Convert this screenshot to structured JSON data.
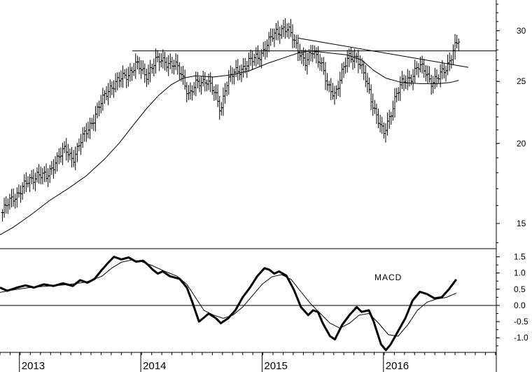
{
  "chart_data": [
    {
      "type": "bar",
      "subtype": "ohlc",
      "scale": "log",
      "ylim": [
        13.7,
        33.5
      ],
      "y_ticks": [
        15,
        20,
        25,
        30
      ],
      "y_tick_labels": [
        "15",
        "20",
        "25",
        "30"
      ],
      "x_tick_labels": [
        "2013",
        "2014",
        "2015",
        "2016"
      ],
      "x_range": [
        2012.84,
        2016.93
      ],
      "price_series": [
        {
          "t": 2012.86,
          "v": 15.6
        },
        {
          "t": 2012.95,
          "v": 16.5
        },
        {
          "t": 2013.05,
          "v": 17.2
        },
        {
          "t": 2013.15,
          "v": 18.0
        },
        {
          "t": 2013.22,
          "v": 17.6
        },
        {
          "t": 2013.3,
          "v": 18.9
        },
        {
          "t": 2013.38,
          "v": 19.5
        },
        {
          "t": 2013.44,
          "v": 19.0
        },
        {
          "t": 2013.52,
          "v": 20.3
        },
        {
          "t": 2013.58,
          "v": 21.4
        },
        {
          "t": 2013.66,
          "v": 22.8
        },
        {
          "t": 2013.74,
          "v": 24.5
        },
        {
          "t": 2013.82,
          "v": 25.0
        },
        {
          "t": 2013.9,
          "v": 25.8
        },
        {
          "t": 2013.96,
          "v": 26.5
        },
        {
          "t": 2014.04,
          "v": 25.6
        },
        {
          "t": 2014.12,
          "v": 26.8
        },
        {
          "t": 2014.2,
          "v": 27.0
        },
        {
          "t": 2014.28,
          "v": 26.4
        },
        {
          "t": 2014.34,
          "v": 25.6
        },
        {
          "t": 2014.4,
          "v": 23.8
        },
        {
          "t": 2014.46,
          "v": 24.7
        },
        {
          "t": 2014.54,
          "v": 25.3
        },
        {
          "t": 2014.6,
          "v": 24.0
        },
        {
          "t": 2014.66,
          "v": 22.6
        },
        {
          "t": 2014.7,
          "v": 24.8
        },
        {
          "t": 2014.78,
          "v": 25.8
        },
        {
          "t": 2014.86,
          "v": 26.5
        },
        {
          "t": 2014.92,
          "v": 26.9
        },
        {
          "t": 2015.0,
          "v": 27.8
        },
        {
          "t": 2015.06,
          "v": 28.8
        },
        {
          "t": 2015.12,
          "v": 30.0
        },
        {
          "t": 2015.18,
          "v": 30.3
        },
        {
          "t": 2015.24,
          "v": 29.5
        },
        {
          "t": 2015.3,
          "v": 28.2
        },
        {
          "t": 2015.36,
          "v": 26.5
        },
        {
          "t": 2015.42,
          "v": 28.0
        },
        {
          "t": 2015.48,
          "v": 27.0
        },
        {
          "t": 2015.54,
          "v": 24.3
        },
        {
          "t": 2015.6,
          "v": 24.0
        },
        {
          "t": 2015.66,
          "v": 25.8
        },
        {
          "t": 2015.72,
          "v": 27.3
        },
        {
          "t": 2015.78,
          "v": 27.4
        },
        {
          "t": 2015.84,
          "v": 25.5
        },
        {
          "t": 2015.9,
          "v": 23.5
        },
        {
          "t": 2015.95,
          "v": 22.0
        },
        {
          "t": 2016.0,
          "v": 20.5
        },
        {
          "t": 2016.05,
          "v": 22.0
        },
        {
          "t": 2016.1,
          "v": 23.8
        },
        {
          "t": 2016.16,
          "v": 24.8
        },
        {
          "t": 2016.22,
          "v": 25.4
        },
        {
          "t": 2016.28,
          "v": 26.3
        },
        {
          "t": 2016.34,
          "v": 26.0
        },
        {
          "t": 2016.4,
          "v": 25.0
        },
        {
          "t": 2016.46,
          "v": 25.3
        },
        {
          "t": 2016.52,
          "v": 26.4
        },
        {
          "t": 2016.58,
          "v": 28.1
        },
        {
          "t": 2016.62,
          "v": 28.8
        }
      ],
      "moving_average": [
        {
          "t": 2012.84,
          "v": 14.4
        },
        {
          "t": 2012.95,
          "v": 14.8
        },
        {
          "t": 2013.1,
          "v": 15.5
        },
        {
          "t": 2013.25,
          "v": 16.3
        },
        {
          "t": 2013.4,
          "v": 17.0
        },
        {
          "t": 2013.55,
          "v": 17.8
        },
        {
          "t": 2013.7,
          "v": 18.9
        },
        {
          "t": 2013.82,
          "v": 20.0
        },
        {
          "t": 2013.95,
          "v": 21.5
        },
        {
          "t": 2014.05,
          "v": 22.7
        },
        {
          "t": 2014.15,
          "v": 23.8
        },
        {
          "t": 2014.25,
          "v": 24.7
        },
        {
          "t": 2014.35,
          "v": 25.3
        },
        {
          "t": 2014.45,
          "v": 25.5
        },
        {
          "t": 2014.6,
          "v": 25.4
        },
        {
          "t": 2014.75,
          "v": 25.6
        },
        {
          "t": 2014.9,
          "v": 26.0
        },
        {
          "t": 2015.05,
          "v": 26.7
        },
        {
          "t": 2015.2,
          "v": 27.3
        },
        {
          "t": 2015.3,
          "v": 27.7
        },
        {
          "t": 2015.4,
          "v": 27.9
        },
        {
          "t": 2015.55,
          "v": 27.7
        },
        {
          "t": 2015.7,
          "v": 27.5
        },
        {
          "t": 2015.82,
          "v": 27.0
        },
        {
          "t": 2015.92,
          "v": 26.0
        },
        {
          "t": 2016.02,
          "v": 25.3
        },
        {
          "t": 2016.15,
          "v": 24.9
        },
        {
          "t": 2016.3,
          "v": 24.8
        },
        {
          "t": 2016.45,
          "v": 24.8
        },
        {
          "t": 2016.55,
          "v": 24.9
        },
        {
          "t": 2016.62,
          "v": 25.1
        }
      ],
      "horizontal_line": {
        "value": 27.9,
        "t_start": 2013.93,
        "t_end": 2016.93
      },
      "trendline": {
        "t1": 2015.3,
        "v1": 29.2,
        "t2": 2016.7,
        "v2": 26.3
      }
    },
    {
      "type": "line",
      "annotation": "MACD",
      "ylim": [
        -1.45,
        1.75
      ],
      "y_ticks": [
        1.5,
        1.0,
        0.5,
        0.0,
        -0.5,
        -1.0
      ],
      "y_tick_labels": [
        "1.5",
        "1.0",
        "0.5",
        "0.0",
        "-0.5",
        "-1.0"
      ],
      "zero_line": 0.0,
      "series": [
        {
          "values": [
            {
              "t": 2012.84,
              "v": 0.55
            },
            {
              "t": 2012.9,
              "v": 0.45
            },
            {
              "t": 2012.98,
              "v": 0.55
            },
            {
              "t": 2013.05,
              "v": 0.62
            },
            {
              "t": 2013.12,
              "v": 0.55
            },
            {
              "t": 2013.2,
              "v": 0.65
            },
            {
              "t": 2013.28,
              "v": 0.6
            },
            {
              "t": 2013.36,
              "v": 0.68
            },
            {
              "t": 2013.44,
              "v": 0.6
            },
            {
              "t": 2013.5,
              "v": 0.78
            },
            {
              "t": 2013.56,
              "v": 0.7
            },
            {
              "t": 2013.62,
              "v": 0.82
            },
            {
              "t": 2013.68,
              "v": 1.1
            },
            {
              "t": 2013.74,
              "v": 1.35
            },
            {
              "t": 2013.78,
              "v": 1.5
            },
            {
              "t": 2013.84,
              "v": 1.42
            },
            {
              "t": 2013.9,
              "v": 1.48
            },
            {
              "t": 2013.96,
              "v": 1.35
            },
            {
              "t": 2014.02,
              "v": 1.38
            },
            {
              "t": 2014.06,
              "v": 1.25
            },
            {
              "t": 2014.1,
              "v": 1.1
            },
            {
              "t": 2014.14,
              "v": 0.98
            },
            {
              "t": 2014.18,
              "v": 1.05
            },
            {
              "t": 2014.24,
              "v": 0.9
            },
            {
              "t": 2014.32,
              "v": 0.82
            },
            {
              "t": 2014.38,
              "v": 0.55
            },
            {
              "t": 2014.43,
              "v": 0.05
            },
            {
              "t": 2014.48,
              "v": -0.5
            },
            {
              "t": 2014.52,
              "v": -0.38
            },
            {
              "t": 2014.56,
              "v": -0.25
            },
            {
              "t": 2014.62,
              "v": -0.4
            },
            {
              "t": 2014.66,
              "v": -0.55
            },
            {
              "t": 2014.72,
              "v": -0.4
            },
            {
              "t": 2014.78,
              "v": -0.15
            },
            {
              "t": 2014.84,
              "v": 0.25
            },
            {
              "t": 2014.9,
              "v": 0.55
            },
            {
              "t": 2014.96,
              "v": 0.9
            },
            {
              "t": 2015.02,
              "v": 1.15
            },
            {
              "t": 2015.06,
              "v": 1.1
            },
            {
              "t": 2015.1,
              "v": 0.98
            },
            {
              "t": 2015.14,
              "v": 1.05
            },
            {
              "t": 2015.2,
              "v": 0.92
            },
            {
              "t": 2015.26,
              "v": 0.5
            },
            {
              "t": 2015.32,
              "v": -0.05
            },
            {
              "t": 2015.38,
              "v": -0.3
            },
            {
              "t": 2015.42,
              "v": -0.15
            },
            {
              "t": 2015.46,
              "v": -0.2
            },
            {
              "t": 2015.5,
              "v": -0.55
            },
            {
              "t": 2015.56,
              "v": -0.95
            },
            {
              "t": 2015.6,
              "v": -1.05
            },
            {
              "t": 2015.66,
              "v": -0.6
            },
            {
              "t": 2015.72,
              "v": -0.3
            },
            {
              "t": 2015.78,
              "v": -0.05
            },
            {
              "t": 2015.82,
              "v": -0.2
            },
            {
              "t": 2015.88,
              "v": -0.15
            },
            {
              "t": 2015.92,
              "v": -0.5
            },
            {
              "t": 2015.98,
              "v": -1.2
            },
            {
              "t": 2016.02,
              "v": -1.38
            },
            {
              "t": 2016.06,
              "v": -1.2
            },
            {
              "t": 2016.12,
              "v": -0.8
            },
            {
              "t": 2016.18,
              "v": -0.4
            },
            {
              "t": 2016.24,
              "v": 0.15
            },
            {
              "t": 2016.3,
              "v": 0.42
            },
            {
              "t": 2016.36,
              "v": 0.35
            },
            {
              "t": 2016.42,
              "v": 0.22
            },
            {
              "t": 2016.48,
              "v": 0.25
            },
            {
              "t": 2016.54,
              "v": 0.5
            },
            {
              "t": 2016.6,
              "v": 0.8
            }
          ]
        },
        {
          "values": [
            {
              "t": 2012.84,
              "v": 0.4
            },
            {
              "t": 2012.95,
              "v": 0.48
            },
            {
              "t": 2013.1,
              "v": 0.56
            },
            {
              "t": 2013.25,
              "v": 0.6
            },
            {
              "t": 2013.4,
              "v": 0.64
            },
            {
              "t": 2013.55,
              "v": 0.72
            },
            {
              "t": 2013.68,
              "v": 0.9
            },
            {
              "t": 2013.76,
              "v": 1.15
            },
            {
              "t": 2013.84,
              "v": 1.33
            },
            {
              "t": 2013.92,
              "v": 1.4
            },
            {
              "t": 2014.0,
              "v": 1.36
            },
            {
              "t": 2014.1,
              "v": 1.22
            },
            {
              "t": 2014.2,
              "v": 1.05
            },
            {
              "t": 2014.3,
              "v": 0.9
            },
            {
              "t": 2014.38,
              "v": 0.65
            },
            {
              "t": 2014.45,
              "v": 0.25
            },
            {
              "t": 2014.52,
              "v": -0.15
            },
            {
              "t": 2014.6,
              "v": -0.3
            },
            {
              "t": 2014.68,
              "v": -0.4
            },
            {
              "t": 2014.76,
              "v": -0.3
            },
            {
              "t": 2014.84,
              "v": -0.05
            },
            {
              "t": 2014.92,
              "v": 0.3
            },
            {
              "t": 2015.0,
              "v": 0.65
            },
            {
              "t": 2015.08,
              "v": 0.88
            },
            {
              "t": 2015.16,
              "v": 0.95
            },
            {
              "t": 2015.24,
              "v": 0.8
            },
            {
              "t": 2015.32,
              "v": 0.42
            },
            {
              "t": 2015.4,
              "v": 0.05
            },
            {
              "t": 2015.48,
              "v": -0.25
            },
            {
              "t": 2015.56,
              "v": -0.55
            },
            {
              "t": 2015.64,
              "v": -0.7
            },
            {
              "t": 2015.72,
              "v": -0.55
            },
            {
              "t": 2015.8,
              "v": -0.3
            },
            {
              "t": 2015.88,
              "v": -0.25
            },
            {
              "t": 2015.96,
              "v": -0.55
            },
            {
              "t": 2016.04,
              "v": -0.9
            },
            {
              "t": 2016.12,
              "v": -0.95
            },
            {
              "t": 2016.2,
              "v": -0.6
            },
            {
              "t": 2016.28,
              "v": -0.15
            },
            {
              "t": 2016.36,
              "v": 0.1
            },
            {
              "t": 2016.44,
              "v": 0.2
            },
            {
              "t": 2016.52,
              "v": 0.25
            },
            {
              "t": 2016.6,
              "v": 0.38
            }
          ]
        }
      ]
    }
  ]
}
